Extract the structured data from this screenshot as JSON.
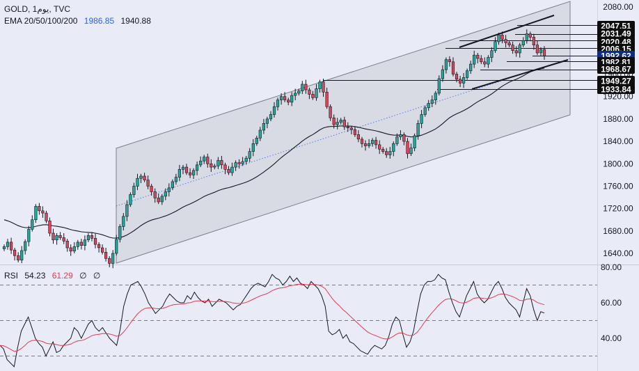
{
  "header": {
    "symbol": "GOLD, 1يوم, TVC",
    "ema_label": "EMA 20/50/100/200",
    "ema_value_1": "1986.85",
    "ema_value_2": "1940.88"
  },
  "rsi_header": {
    "label": "RSI",
    "value": "54.23",
    "ma_value": "61.29",
    "extra_1": "∅",
    "extra_2": "∅"
  },
  "colors": {
    "background": "#e9ecf6",
    "channel_fill": "#d3d5de",
    "bull": "#26a69a",
    "bear": "#d9455b",
    "ema_blue": "#2962ff",
    "ema_black": "#131722",
    "rsi_line": "#131722",
    "rsi_ma": "#e53950",
    "price_tag_bg": "#0d0d0d",
    "current_tag_bg": "#0d2d8a"
  },
  "chart_data": [
    {
      "type": "candlestick",
      "symbol": "GOLD",
      "interval": "1D",
      "y_axis": {
        "ticks": [
          "2080.00",
          "2040.00",
          "2000.00",
          "1960.00",
          "1920.00",
          "1880.00",
          "1840.00",
          "1800.00",
          "1760.00",
          "1720.00",
          "1680.00",
          "1640.00"
        ],
        "ylim": [
          1620,
          2090
        ]
      },
      "price_levels": [
        {
          "label": "2047.51",
          "value": 2047.51
        },
        {
          "label": "2031.49",
          "value": 2031.49
        },
        {
          "label": "2020.48",
          "value": 2020.48
        },
        {
          "label": "2006.15",
          "value": 2006.15
        },
        {
          "label": "1992.62",
          "value": 1992.62,
          "current": true
        },
        {
          "label": "1982.81",
          "value": 1982.81
        },
        {
          "label": "1968.67",
          "value": 1968.67
        },
        {
          "label": "1949.27",
          "value": 1949.27
        },
        {
          "label": "1933.84",
          "value": 1933.84
        }
      ],
      "closes": [
        1652,
        1660,
        1646,
        1636,
        1628,
        1645,
        1661,
        1683,
        1700,
        1724,
        1716,
        1712,
        1698,
        1676,
        1664,
        1672,
        1668,
        1662,
        1650,
        1644,
        1652,
        1660,
        1654,
        1664,
        1672,
        1667,
        1656,
        1650,
        1642,
        1631,
        1622,
        1640,
        1665,
        1688,
        1706,
        1727,
        1745,
        1760,
        1774,
        1778,
        1771,
        1760,
        1750,
        1739,
        1732,
        1742,
        1750,
        1757,
        1768,
        1776,
        1790,
        1794,
        1784,
        1780,
        1788,
        1798,
        1805,
        1812,
        1800,
        1794,
        1796,
        1806,
        1798,
        1790,
        1784,
        1794,
        1802,
        1800,
        1804,
        1810,
        1822,
        1836,
        1846,
        1860,
        1872,
        1880,
        1888,
        1902,
        1914,
        1920,
        1914,
        1910,
        1922,
        1926,
        1930,
        1942,
        1932,
        1924,
        1918,
        1934,
        1946,
        1928,
        1902,
        1882,
        1870,
        1874,
        1878,
        1866,
        1864,
        1861,
        1852,
        1844,
        1836,
        1832,
        1836,
        1842,
        1834,
        1826,
        1822,
        1816,
        1822,
        1836,
        1848,
        1852,
        1840,
        1818,
        1828,
        1850,
        1872,
        1888,
        1900,
        1908,
        1914,
        1926,
        1952,
        1968,
        1986,
        1982,
        1960,
        1951,
        1944,
        1954,
        1966,
        1978,
        1994,
        1988,
        1982,
        1978,
        1990,
        2002,
        2018,
        2030,
        2022,
        2016,
        2012,
        2002,
        1998,
        2012,
        2020,
        2032,
        2026,
        2012,
        1998,
        2004,
        1992.62
      ],
      "ema_lines": [
        {
          "label": "EMA 20",
          "color": "blue",
          "last": 1986.85
        },
        {
          "label": "EMA 50",
          "color": "black",
          "last": 1940.88
        }
      ],
      "annotations": [
        "ascending channel",
        "rising wedge",
        "horizontal support/resistance levels"
      ]
    },
    {
      "type": "line",
      "name": "RSI",
      "y_axis": {
        "ticks": [
          "80.00",
          "60.00",
          "40.00"
        ],
        "ylim": [
          20,
          86
        ]
      },
      "bands": [
        70,
        50,
        30
      ],
      "rsi_last": 54.23,
      "rsi_ma_last": 61.29,
      "rsi": [
        36,
        34,
        28,
        26,
        24,
        35,
        44,
        48,
        52,
        46,
        40,
        37,
        35,
        30,
        34,
        38,
        32,
        33,
        36,
        38,
        40,
        46,
        44,
        40,
        44,
        48,
        50,
        46,
        44,
        46,
        43,
        40,
        38,
        36,
        45,
        58,
        65,
        70,
        71,
        72,
        69,
        65,
        60,
        57,
        54,
        56,
        58,
        62,
        65,
        63,
        61,
        60,
        60,
        64,
        62,
        66,
        63,
        61,
        60,
        62,
        58,
        60,
        62,
        61,
        60,
        58,
        56,
        58,
        59,
        62,
        65,
        68,
        70,
        71,
        70,
        69,
        72,
        76,
        74,
        73,
        70,
        72,
        75,
        72,
        74,
        71,
        70,
        68,
        72,
        70,
        68,
        64,
        58,
        44,
        42,
        43,
        45,
        40,
        42,
        38,
        37,
        35,
        33,
        32,
        31,
        34,
        36,
        35,
        34,
        36,
        41,
        48,
        52,
        50,
        42,
        35,
        38,
        44,
        55,
        65,
        70,
        72,
        72,
        73,
        76,
        74,
        73,
        66,
        60,
        55,
        52,
        58,
        64,
        68,
        72,
        65,
        62,
        60,
        62,
        66,
        70,
        72,
        68,
        63,
        60,
        58,
        56,
        52,
        60,
        68,
        64,
        56,
        50,
        55,
        54.23
      ]
    }
  ]
}
